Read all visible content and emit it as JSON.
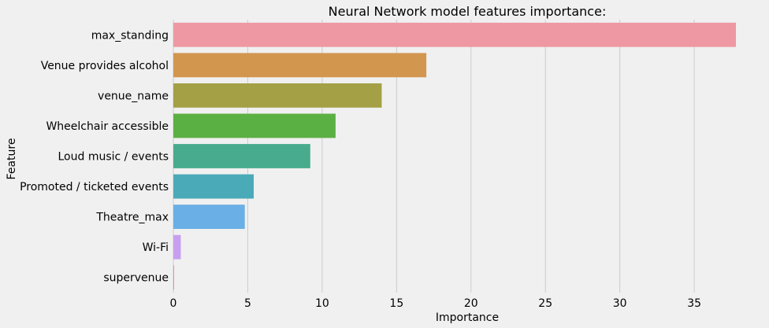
{
  "chart_data": {
    "type": "bar",
    "orientation": "horizontal",
    "title": "Neural Network model features importance:",
    "xlabel": "Importance",
    "ylabel": "Feature",
    "categories": [
      "max_standing",
      "Venue provides alcohol",
      "venue_name",
      "Wheelchair accessible",
      "Loud music / events",
      "Promoted / ticketed events",
      "Theatre_max",
      "Wi-Fi",
      "supervenue"
    ],
    "values": [
      37.8,
      17.0,
      14.0,
      10.9,
      9.2,
      5.4,
      4.8,
      0.5,
      0.05
    ],
    "colors": [
      "#ee98a3",
      "#d3964f",
      "#a3a046",
      "#5bb043",
      "#48ab8e",
      "#4aaab8",
      "#6aafe6",
      "#c89ff0",
      "#ea88c8"
    ],
    "xlim": [
      0,
      37.8
    ],
    "xticks": [
      0,
      5,
      10,
      15,
      20,
      25,
      30,
      35
    ],
    "grid": true
  }
}
